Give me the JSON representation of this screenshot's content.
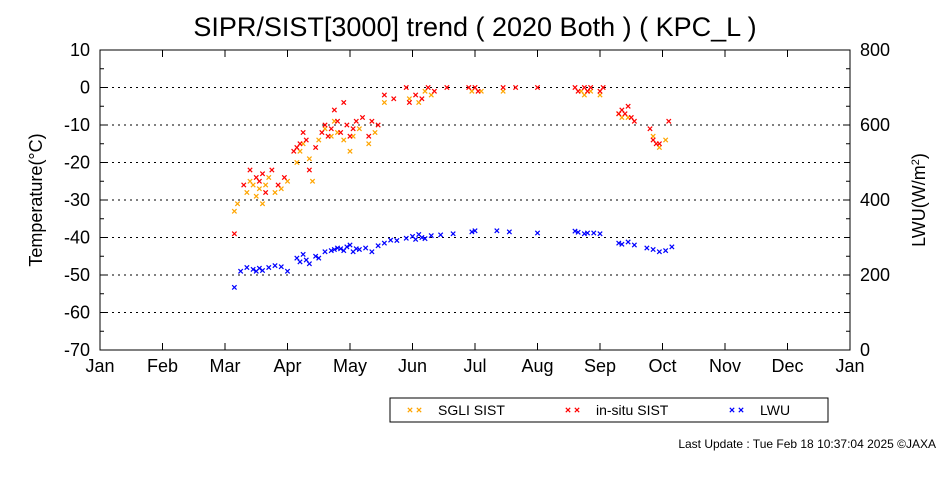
{
  "chart_data": {
    "type": "scatter",
    "title": "SIPR/SIST[3000] trend ( 2020 Both ) ( KPC_L )",
    "ylabel": "Temperature(°C)",
    "y2label_base": "LWU(W/m",
    "y2label_sup": "2",
    "y2label_end": ")",
    "ylim": [
      -70,
      10
    ],
    "y2lim": [
      0,
      800
    ],
    "xlim": [
      1,
      13
    ],
    "x_ticks": [
      1,
      2,
      3,
      4,
      5,
      6,
      7,
      8,
      9,
      10,
      11,
      12,
      13
    ],
    "x_ticklabels": [
      "Jan",
      "Feb",
      "Mar",
      "Apr",
      "May",
      "Jun",
      "Jul",
      "Aug",
      "Sep",
      "Oct",
      "Nov",
      "Dec",
      "Jan"
    ],
    "y_ticks": [
      10,
      0,
      -10,
      -20,
      -30,
      -40,
      -50,
      -60,
      -70
    ],
    "y_ticklabels": [
      "10",
      "0",
      "-10",
      "-20",
      "-30",
      "-40",
      "-50",
      "-60",
      "-70"
    ],
    "y2_ticks": [
      800,
      600,
      400,
      200,
      0
    ],
    "y2_ticklabels": [
      "800",
      "600",
      "400",
      "200",
      "0"
    ],
    "grid": "dotted horizontal",
    "legend_position": "bottom-right",
    "series": [
      {
        "name": "SGLI SIST",
        "color": "#ffa500",
        "axis": "left",
        "points": [
          [
            3.15,
            -33
          ],
          [
            3.2,
            -31
          ],
          [
            3.35,
            -28
          ],
          [
            3.4,
            -25
          ],
          [
            3.45,
            -26
          ],
          [
            3.5,
            -29
          ],
          [
            3.55,
            -27
          ],
          [
            3.6,
            -31
          ],
          [
            3.65,
            -26
          ],
          [
            3.7,
            -24
          ],
          [
            3.8,
            -28
          ],
          [
            3.9,
            -27
          ],
          [
            4.0,
            -25
          ],
          [
            4.15,
            -20
          ],
          [
            4.2,
            -17
          ],
          [
            4.25,
            -15
          ],
          [
            4.35,
            -19
          ],
          [
            4.4,
            -25
          ],
          [
            4.5,
            -14
          ],
          [
            4.6,
            -11
          ],
          [
            4.7,
            -13
          ],
          [
            4.75,
            -9
          ],
          [
            4.8,
            -12
          ],
          [
            4.9,
            -14
          ],
          [
            5.0,
            -17
          ],
          [
            5.05,
            -13
          ],
          [
            5.15,
            -11
          ],
          [
            5.3,
            -15
          ],
          [
            5.4,
            -12
          ],
          [
            5.55,
            -4
          ],
          [
            5.95,
            -3
          ],
          [
            6.1,
            -4
          ],
          [
            6.2,
            -1
          ],
          [
            6.3,
            -2
          ],
          [
            6.95,
            -1
          ],
          [
            7.1,
            -1
          ],
          [
            7.45,
            -1
          ],
          [
            8.7,
            -1
          ],
          [
            8.75,
            -2
          ],
          [
            8.85,
            -1
          ],
          [
            9.0,
            -2
          ],
          [
            9.3,
            -7
          ],
          [
            9.35,
            -8
          ],
          [
            9.45,
            -8
          ],
          [
            9.85,
            -13
          ],
          [
            9.95,
            -16
          ],
          [
            10.05,
            -14
          ]
        ]
      },
      {
        "name": "in-situ SIST",
        "color": "#ff0000",
        "axis": "left",
        "points": [
          [
            3.15,
            -39
          ],
          [
            3.3,
            -26
          ],
          [
            3.4,
            -22
          ],
          [
            3.5,
            -24
          ],
          [
            3.55,
            -25
          ],
          [
            3.6,
            -23
          ],
          [
            3.65,
            -28
          ],
          [
            3.75,
            -22
          ],
          [
            3.85,
            -26
          ],
          [
            3.95,
            -24
          ],
          [
            4.1,
            -17
          ],
          [
            4.15,
            -16
          ],
          [
            4.2,
            -15
          ],
          [
            4.25,
            -12
          ],
          [
            4.3,
            -14
          ],
          [
            4.35,
            -22
          ],
          [
            4.45,
            -16
          ],
          [
            4.55,
            -12
          ],
          [
            4.6,
            -10
          ],
          [
            4.65,
            -13
          ],
          [
            4.7,
            -11
          ],
          [
            4.75,
            -6
          ],
          [
            4.8,
            -9
          ],
          [
            4.85,
            -12
          ],
          [
            4.9,
            -4
          ],
          [
            4.95,
            -10
          ],
          [
            5.0,
            -13
          ],
          [
            5.05,
            -11
          ],
          [
            5.1,
            -9
          ],
          [
            5.2,
            -8
          ],
          [
            5.3,
            -13
          ],
          [
            5.35,
            -9
          ],
          [
            5.45,
            -10
          ],
          [
            5.55,
            -2
          ],
          [
            5.7,
            -3
          ],
          [
            5.9,
            0
          ],
          [
            5.95,
            -4
          ],
          [
            6.05,
            -2
          ],
          [
            6.15,
            -3
          ],
          [
            6.25,
            0
          ],
          [
            6.35,
            -1
          ],
          [
            6.55,
            0
          ],
          [
            6.9,
            0
          ],
          [
            7.0,
            0
          ],
          [
            7.05,
            -1
          ],
          [
            7.45,
            0
          ],
          [
            7.65,
            0
          ],
          [
            8.0,
            0
          ],
          [
            8.6,
            0
          ],
          [
            8.65,
            -1
          ],
          [
            8.75,
            0
          ],
          [
            8.8,
            -1
          ],
          [
            8.85,
            0
          ],
          [
            9.0,
            -1
          ],
          [
            9.05,
            0
          ],
          [
            9.3,
            -7
          ],
          [
            9.35,
            -6
          ],
          [
            9.4,
            -7
          ],
          [
            9.45,
            -5
          ],
          [
            9.5,
            -8
          ],
          [
            9.55,
            -9
          ],
          [
            9.8,
            -11
          ],
          [
            9.85,
            -14
          ],
          [
            9.9,
            -15
          ],
          [
            9.95,
            -15
          ],
          [
            10.1,
            -9
          ]
        ]
      },
      {
        "name": "LWU",
        "color": "#0000ff",
        "axis": "right",
        "points": [
          [
            3.15,
            167
          ],
          [
            3.25,
            210
          ],
          [
            3.35,
            220
          ],
          [
            3.45,
            215
          ],
          [
            3.5,
            210
          ],
          [
            3.55,
            218
          ],
          [
            3.6,
            212
          ],
          [
            3.7,
            220
          ],
          [
            3.8,
            225
          ],
          [
            3.9,
            222
          ],
          [
            4.0,
            210
          ],
          [
            4.15,
            245
          ],
          [
            4.2,
            235
          ],
          [
            4.25,
            255
          ],
          [
            4.3,
            240
          ],
          [
            4.35,
            230
          ],
          [
            4.45,
            250
          ],
          [
            4.5,
            245
          ],
          [
            4.6,
            262
          ],
          [
            4.7,
            265
          ],
          [
            4.75,
            268
          ],
          [
            4.8,
            272
          ],
          [
            4.85,
            270
          ],
          [
            4.9,
            265
          ],
          [
            4.95,
            275
          ],
          [
            5.0,
            280
          ],
          [
            5.05,
            262
          ],
          [
            5.1,
            270
          ],
          [
            5.15,
            268
          ],
          [
            5.25,
            272
          ],
          [
            5.35,
            262
          ],
          [
            5.45,
            278
          ],
          [
            5.55,
            285
          ],
          [
            5.65,
            293
          ],
          [
            5.75,
            292
          ],
          [
            5.9,
            298
          ],
          [
            6.0,
            303
          ],
          [
            6.05,
            295
          ],
          [
            6.1,
            308
          ],
          [
            6.15,
            300
          ],
          [
            6.2,
            297
          ],
          [
            6.3,
            305
          ],
          [
            6.45,
            307
          ],
          [
            6.65,
            310
          ],
          [
            6.95,
            315
          ],
          [
            7.0,
            318
          ],
          [
            7.35,
            318
          ],
          [
            7.55,
            315
          ],
          [
            8.0,
            312
          ],
          [
            8.6,
            317
          ],
          [
            8.65,
            314
          ],
          [
            8.75,
            310
          ],
          [
            8.8,
            312
          ],
          [
            8.9,
            312
          ],
          [
            9.0,
            310
          ],
          [
            9.3,
            285
          ],
          [
            9.35,
            282
          ],
          [
            9.45,
            288
          ],
          [
            9.55,
            280
          ],
          [
            9.75,
            272
          ],
          [
            9.85,
            268
          ],
          [
            9.95,
            262
          ],
          [
            10.05,
            265
          ],
          [
            10.15,
            275
          ]
        ]
      }
    ]
  },
  "footer": {
    "last_update": "Last Update : Tue Feb 18 10:37:04 2025 ©JAXA"
  }
}
